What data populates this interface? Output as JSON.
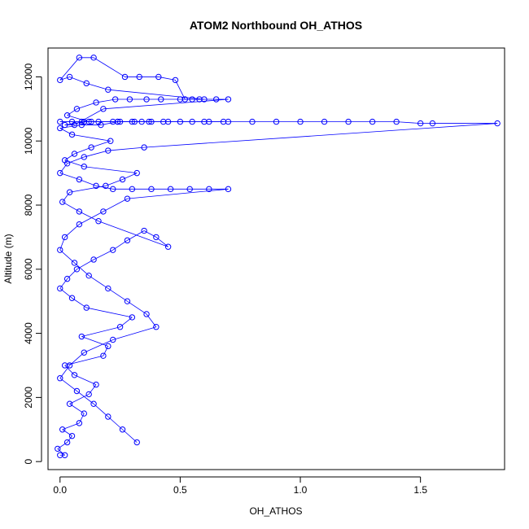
{
  "chart_data": {
    "type": "scatter",
    "title": "ATOM2 Northbound OH_ATHOS",
    "xlabel": "OH_ATHOS",
    "ylabel": "Altitude (m)",
    "xlim": [
      -0.05,
      1.85
    ],
    "ylim": [
      -250,
      12900
    ],
    "x_ticks": [
      0.0,
      0.5,
      1.0,
      1.5
    ],
    "x_tick_labels": [
      "0.0",
      "0.5",
      "1.0",
      "1.5"
    ],
    "y_ticks": [
      0,
      2000,
      4000,
      6000,
      8000,
      10000,
      12000
    ],
    "y_tick_labels": [
      "0",
      "2000",
      "4000",
      "6000",
      "8000",
      "10000",
      "12000"
    ],
    "grid": false,
    "legend": "none",
    "colors": {
      "series": "#0000ff",
      "axis": "#000000"
    },
    "marker": "open-circle",
    "connect_points": true,
    "series": [
      {
        "x": [
          0.0,
          0.02,
          -0.01,
          0.03,
          0.05,
          0.01,
          0.08,
          0.1,
          0.04,
          0.12,
          0.15,
          0.06,
          0.02,
          0.18,
          0.2,
          0.09,
          0.25,
          0.3,
          0.11,
          0.05,
          0.0,
          0.03,
          0.07,
          0.14,
          0.22,
          0.28,
          0.35,
          0.4,
          0.45,
          0.16,
          0.08,
          0.01,
          0.04,
          0.19,
          0.26,
          0.32,
          0.1,
          0.02,
          0.06,
          0.13,
          0.21,
          0.05,
          0.0,
          0.09,
          0.17,
          0.24,
          0.31,
          0.38,
          0.12,
          0.03,
          0.07,
          0.15,
          0.23,
          0.29,
          0.36,
          0.42,
          0.5,
          0.55,
          0.6,
          0.2,
          0.11,
          0.04,
          0.0,
          0.08,
          0.14,
          0.27,
          0.33,
          0.41,
          0.48,
          0.52,
          0.58,
          0.65,
          0.7,
          0.18,
          0.06,
          0.02,
          0.1,
          0.22,
          0.3,
          0.37,
          0.45,
          0.55,
          0.62,
          0.68,
          0.25,
          0.13,
          0.05,
          0.0,
          0.09,
          0.16,
          0.24,
          0.34,
          0.43,
          0.5,
          0.6,
          0.7,
          0.8,
          0.9,
          1.0,
          1.1,
          1.2,
          1.3,
          1.4,
          1.5,
          1.55,
          1.82,
          0.35,
          0.2,
          0.1,
          0.03,
          0.0,
          0.08,
          0.15,
          0.22,
          0.3,
          0.38,
          0.46,
          0.54,
          0.62,
          0.7,
          0.28,
          0.18,
          0.08,
          0.02,
          0.0,
          0.06,
          0.12,
          0.2,
          0.28,
          0.36,
          0.4,
          0.22,
          0.1,
          0.04,
          0.0,
          0.07,
          0.14,
          0.2,
          0.26,
          0.32
        ],
        "y": [
          200,
          200,
          400,
          600,
          800,
          1000,
          1200,
          1500,
          1800,
          2100,
          2400,
          2700,
          3000,
          3300,
          3600,
          3900,
          4200,
          4500,
          4800,
          5100,
          5400,
          5700,
          6000,
          6300,
          6600,
          6900,
          7200,
          7000,
          6700,
          7500,
          7800,
          8100,
          8400,
          8600,
          8800,
          9000,
          9200,
          9400,
          9600,
          9800,
          10000,
          10200,
          10400,
          10500,
          10500,
          10600,
          10600,
          10600,
          10600,
          10800,
          11000,
          11200,
          11300,
          11300,
          11300,
          11300,
          11300,
          11300,
          11300,
          11600,
          11800,
          12000,
          11900,
          12600,
          12600,
          12000,
          12000,
          12000,
          11900,
          11300,
          11300,
          11300,
          11300,
          11000,
          10500,
          10500,
          10600,
          10600,
          10600,
          10600,
          10600,
          10600,
          10600,
          10600,
          10600,
          10600,
          10600,
          10600,
          10600,
          10600,
          10600,
          10600,
          10600,
          10600,
          10600,
          10600,
          10600,
          10600,
          10600,
          10600,
          10600,
          10600,
          10600,
          10550,
          10550,
          10550,
          9800,
          9700,
          9500,
          9300,
          9000,
          8800,
          8600,
          8500,
          8500,
          8500,
          8500,
          8500,
          8500,
          8500,
          8200,
          7800,
          7400,
          7000,
          6600,
          6200,
          5800,
          5400,
          5000,
          4600,
          4200,
          3800,
          3400,
          3000,
          2600,
          2200,
          1800,
          1400,
          1000,
          600
        ]
      }
    ]
  }
}
